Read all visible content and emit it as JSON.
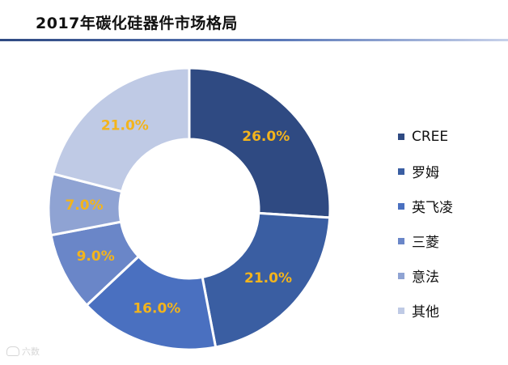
{
  "title": "2017年碳化硅器件市场格局",
  "watermark": "六数",
  "chart_data": {
    "type": "pie",
    "donut": true,
    "legend_position": "right",
    "categories": [
      "CREE",
      "罗姆",
      "英飞凌",
      "三菱",
      "意法",
      "其他"
    ],
    "values": [
      26.0,
      21.0,
      16.0,
      9.0,
      7.0,
      21.0
    ],
    "value_labels": [
      "26.0%",
      "21.0%",
      "16.0%",
      "9.0%",
      "7.0%",
      "21.0%"
    ],
    "colors": [
      "#2f4a82",
      "#3a5ea2",
      "#4a70c0",
      "#6a86c8",
      "#8fa3d3",
      "#bfcae5"
    ],
    "label_color": "#f3b41c"
  }
}
